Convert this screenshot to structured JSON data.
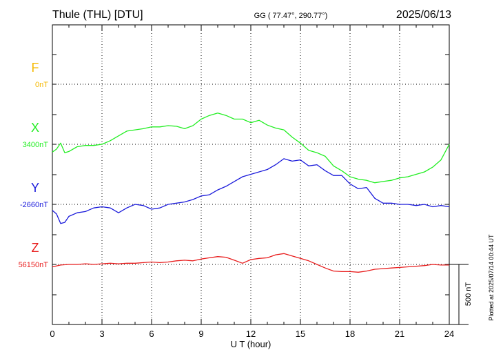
{
  "header": {
    "station": "Thule (THL)  [DTU]",
    "coords": "GG ( 77.47°, 290.77°)",
    "date": "2025/06/13"
  },
  "footer": {
    "plotted": "Plotted at 2025/07/14 00:44 UT"
  },
  "chart_data": {
    "type": "line",
    "xlabel": "U T (hour)",
    "xlim": [
      0,
      24
    ],
    "xticks": [
      0,
      3,
      6,
      9,
      12,
      15,
      18,
      21,
      24
    ],
    "grid": true,
    "scale_bar": "500 nT",
    "series": [
      {
        "name": "F",
        "baseline_label": "0nT",
        "color": "#f5b800",
        "x": [],
        "y": []
      },
      {
        "name": "X",
        "baseline_label": "3400nT",
        "color": "#22ee22",
        "x": [
          0,
          0.25,
          0.5,
          0.75,
          1,
          1.5,
          2,
          2.5,
          3,
          3.5,
          4,
          4.5,
          5,
          5.5,
          6,
          6.5,
          7,
          7.5,
          8,
          8.5,
          9,
          9.5,
          10,
          10.5,
          11,
          11.5,
          12,
          12.5,
          13,
          13.5,
          14,
          14.5,
          15,
          15.5,
          16,
          16.5,
          17,
          17.5,
          18,
          18.5,
          19,
          19.5,
          20,
          20.5,
          21,
          21.5,
          22,
          22.5,
          23,
          23.5,
          24
        ],
        "y": [
          3335,
          3360,
          3410,
          3330,
          3340,
          3380,
          3390,
          3390,
          3400,
          3430,
          3470,
          3510,
          3520,
          3530,
          3545,
          3545,
          3555,
          3550,
          3530,
          3555,
          3610,
          3640,
          3660,
          3640,
          3610,
          3610,
          3580,
          3600,
          3560,
          3535,
          3520,
          3460,
          3410,
          3350,
          3330,
          3300,
          3220,
          3180,
          3130,
          3110,
          3100,
          3080,
          3090,
          3100,
          3120,
          3130,
          3150,
          3170,
          3210,
          3270,
          3400
        ]
      },
      {
        "name": "Y",
        "baseline_label": "-2660nT",
        "color": "#1a1adb",
        "x": [
          0,
          0.25,
          0.5,
          0.75,
          1,
          1.5,
          2,
          2.5,
          3,
          3.5,
          4,
          4.5,
          5,
          5.5,
          6,
          6.5,
          7,
          7.5,
          8,
          8.5,
          9,
          9.5,
          10,
          10.5,
          11,
          11.5,
          12,
          12.5,
          13,
          13.5,
          14,
          14.5,
          15,
          15.5,
          16,
          16.5,
          17,
          17.5,
          18,
          18.5,
          19,
          19.5,
          20,
          20.5,
          21,
          21.5,
          22,
          22.5,
          23,
          23.5,
          24
        ],
        "y": [
          -2710,
          -2740,
          -2820,
          -2810,
          -2760,
          -2730,
          -2720,
          -2690,
          -2680,
          -2690,
          -2730,
          -2690,
          -2660,
          -2670,
          -2700,
          -2690,
          -2660,
          -2650,
          -2640,
          -2620,
          -2590,
          -2580,
          -2540,
          -2510,
          -2470,
          -2430,
          -2410,
          -2390,
          -2370,
          -2330,
          -2280,
          -2300,
          -2290,
          -2340,
          -2330,
          -2380,
          -2420,
          -2420,
          -2490,
          -2530,
          -2520,
          -2610,
          -2650,
          -2650,
          -2660,
          -2660,
          -2670,
          -2660,
          -2680,
          -2670,
          -2680
        ]
      },
      {
        "name": "Z",
        "baseline_label": "56150nT",
        "color": "#e81c1c",
        "x": [
          0,
          0.5,
          1,
          1.5,
          2,
          2.5,
          3,
          3.5,
          4,
          4.5,
          5,
          5.5,
          6,
          6.5,
          7,
          7.5,
          8,
          8.5,
          9,
          9.5,
          10,
          10.5,
          11,
          11.5,
          12,
          12.5,
          13,
          13.5,
          14,
          14.5,
          15,
          15.5,
          16,
          16.5,
          17,
          17.5,
          18,
          18.5,
          19,
          19.5,
          20,
          20.5,
          21,
          21.5,
          22,
          22.5,
          23,
          23.5,
          24
        ],
        "y": [
          56130,
          56145,
          56150,
          56150,
          56155,
          56150,
          56155,
          56160,
          56155,
          56160,
          56160,
          56165,
          56170,
          56165,
          56170,
          56180,
          56185,
          56180,
          56195,
          56205,
          56215,
          56210,
          56185,
          56160,
          56190,
          56200,
          56205,
          56230,
          56240,
          56220,
          56200,
          56180,
          56150,
          56120,
          56095,
          56090,
          56090,
          56085,
          56095,
          56110,
          56115,
          56120,
          56125,
          56130,
          56135,
          56140,
          56150,
          56145,
          56145
        ]
      }
    ]
  }
}
